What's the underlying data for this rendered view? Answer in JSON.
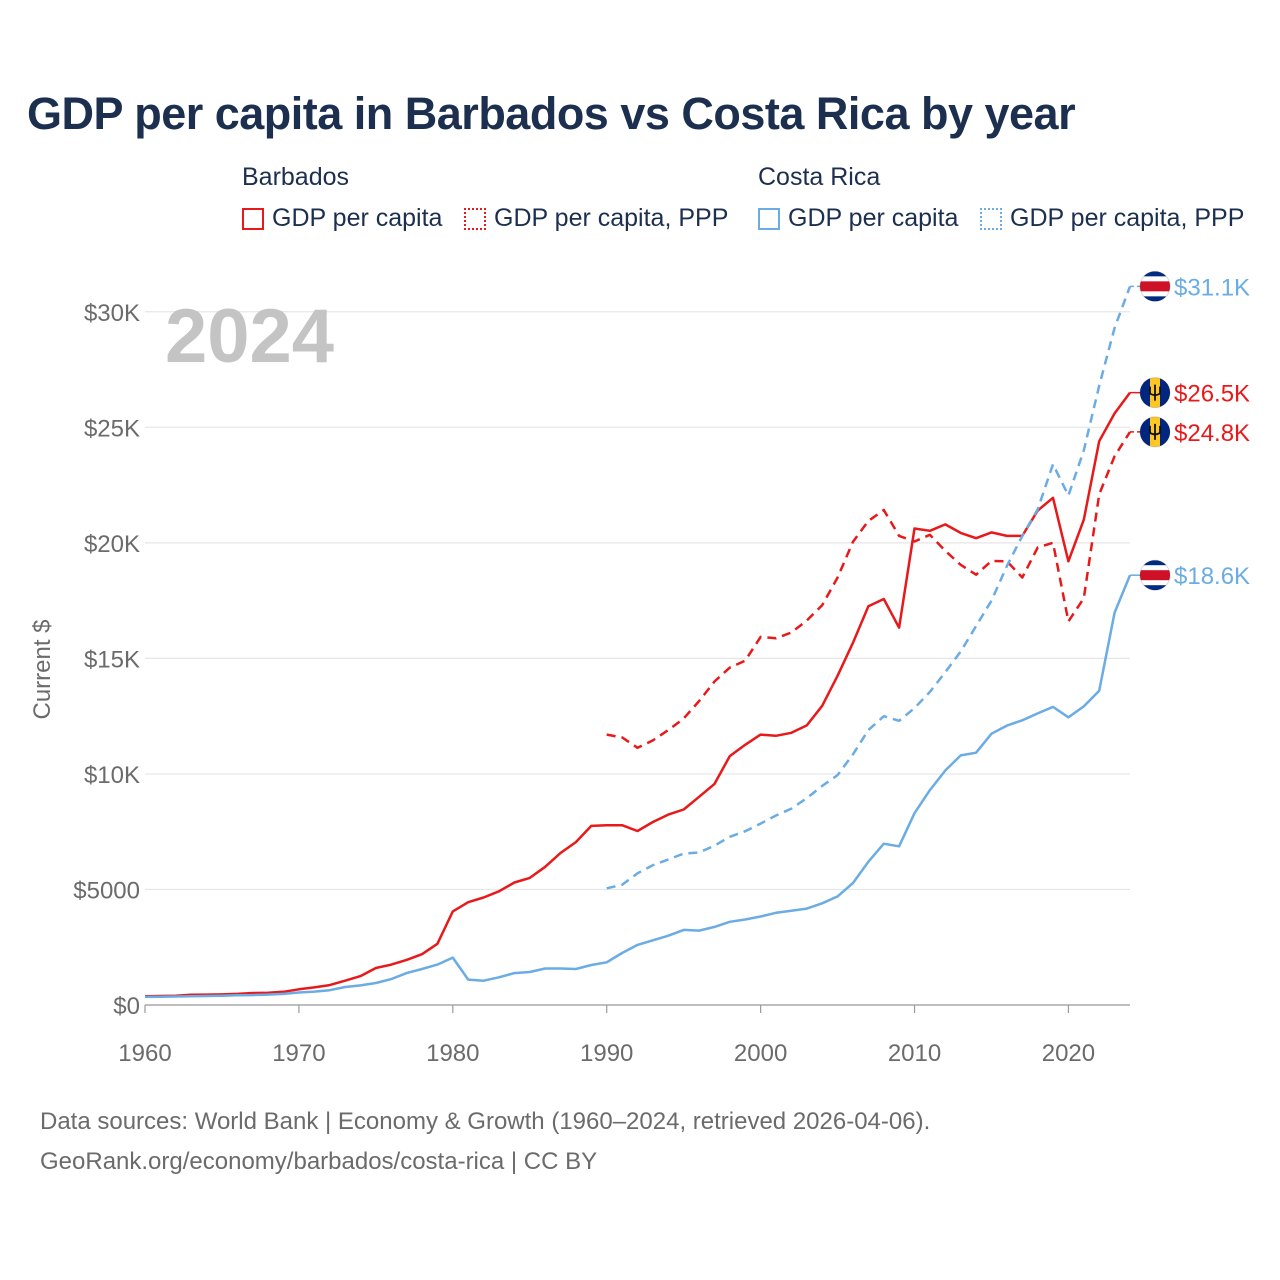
{
  "title": "GDP per capita in Barbados vs Costa Rica by year",
  "legend": {
    "groups": [
      {
        "name": "Barbados",
        "items": [
          "GDP per capita",
          "GDP per capita, PPP"
        ]
      },
      {
        "name": "Costa Rica",
        "items": [
          "GDP per capita",
          "GDP per capita, PPP"
        ]
      }
    ]
  },
  "colors": {
    "barbados": "#e8191a",
    "costa_rica": "#6aace3",
    "title": "#1c2f4f",
    "axis_text": "#6b6b6b",
    "year_watermark": "#c4c4c4",
    "grid": "#e6e6e6"
  },
  "footer": {
    "line1": "Data sources: World Bank | Economy & Growth (1960–2024, retrieved 2026-04-06).",
    "line2": "GeoRank.org/economy/barbados/costa-rica | CC BY"
  },
  "chart_data": {
    "type": "line",
    "year_label": "2024",
    "ylabel": "Current $",
    "xlim": [
      1960,
      2024
    ],
    "ylim": [
      0,
      32500
    ],
    "x_ticks": [
      1960,
      1970,
      1980,
      1990,
      2000,
      2010,
      2020
    ],
    "x_tick_labels": [
      "1960",
      "1970",
      "1980",
      "1990",
      "2000",
      "2010",
      "2020"
    ],
    "y_ticks": [
      0,
      5000,
      10000,
      15000,
      20000,
      25000,
      30000
    ],
    "y_tick_labels": [
      "$0",
      "$5000",
      "$10K",
      "$15K",
      "$20K",
      "$25K",
      "$30K"
    ],
    "series": [
      {
        "name": "Barbados GDP per capita",
        "country": "Barbados",
        "flag": "barbados",
        "dashed": false,
        "color": "#e8191a",
        "end_label": "$26.5K",
        "start_year": 1960,
        "values": [
          380,
          390,
          400,
          440,
          450,
          460,
          480,
          520,
          530,
          570,
          680,
          760,
          860,
          1050,
          1250,
          1600,
          1750,
          1950,
          2200,
          2650,
          4050,
          4450,
          4650,
          4920,
          5300,
          5500,
          5980,
          6580,
          7050,
          7750,
          7780,
          7780,
          7530,
          7920,
          8240,
          8460,
          9010,
          9570,
          10770,
          11260,
          11700,
          11650,
          11780,
          12100,
          12950,
          14250,
          15680,
          17260,
          17570,
          16330,
          20620,
          20520,
          20800,
          20430,
          20200,
          20450,
          20300,
          20300,
          21400,
          21950,
          19200,
          21000,
          24400,
          25600,
          26500
        ]
      },
      {
        "name": "Barbados GDP per capita, PPP",
        "country": "Barbados",
        "flag": "barbados",
        "dashed": true,
        "color": "#e8191a",
        "end_label": "$24.8K",
        "start_year": 1990,
        "values": [
          11700,
          11580,
          11130,
          11450,
          11900,
          12400,
          13150,
          14000,
          14600,
          14900,
          15930,
          15870,
          16120,
          16640,
          17300,
          18500,
          20050,
          20950,
          21420,
          20300,
          20060,
          20350,
          19650,
          19050,
          18620,
          19220,
          19200,
          18500,
          19800,
          20000,
          16600,
          17600,
          22100,
          23750,
          24800
        ]
      },
      {
        "name": "Costa Rica GDP per capita",
        "country": "Costa Rica",
        "flag": "costa_rica",
        "dashed": false,
        "color": "#6aace3",
        "end_label": "$18.6K",
        "start_year": 1960,
        "values": [
          350,
          360,
          370,
          380,
          390,
          400,
          420,
          430,
          450,
          480,
          540,
          580,
          640,
          780,
          850,
          950,
          1120,
          1380,
          1560,
          1750,
          2050,
          1100,
          1050,
          1200,
          1380,
          1430,
          1580,
          1580,
          1560,
          1730,
          1850,
          2250,
          2600,
          2800,
          3000,
          3250,
          3220,
          3380,
          3600,
          3700,
          3830,
          3990,
          4080,
          4170,
          4400,
          4700,
          5280,
          6200,
          6980,
          6870,
          8300,
          9300,
          10150,
          10800,
          10920,
          11740,
          12090,
          12320,
          12620,
          12900,
          12450,
          12920,
          13600,
          16980,
          18600
        ]
      },
      {
        "name": "Costa Rica GDP per capita, PPP",
        "country": "Costa Rica",
        "flag": "costa_rica",
        "dashed": true,
        "color": "#6aace3",
        "end_label": "$31.1K",
        "start_year": 1990,
        "values": [
          5050,
          5200,
          5700,
          6050,
          6300,
          6550,
          6600,
          6900,
          7280,
          7520,
          7850,
          8200,
          8500,
          8950,
          9480,
          9950,
          10850,
          11900,
          12500,
          12300,
          12850,
          13550,
          14400,
          15300,
          16400,
          17500,
          19000,
          20300,
          21450,
          23400,
          22050,
          24000,
          26800,
          29300,
          31100
        ]
      }
    ]
  }
}
